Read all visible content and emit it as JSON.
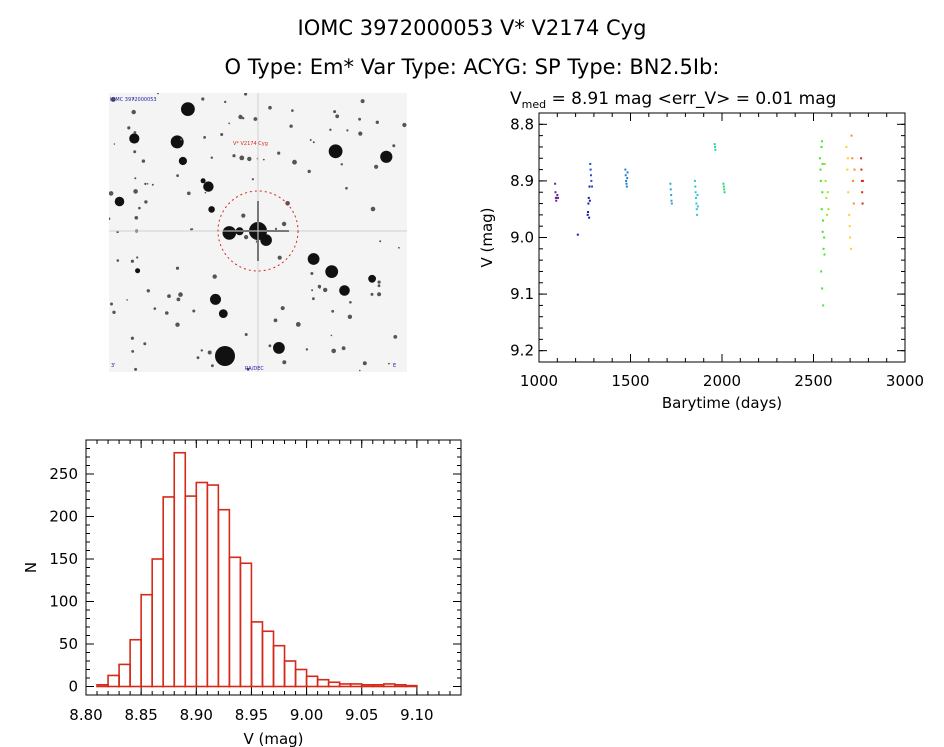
{
  "header": {
    "title_line1": "IOMC 3972000053    V* V2174 Cyg",
    "title_line2": "O Type: Em*  Var Type: ACYG:  SP Type: BN2.5Ib:"
  },
  "image_panel": {
    "label_top_left": "IOMC 3972000053",
    "label_target": "V* V2174 Cyg",
    "label_bottom_left": "3'",
    "label_bottom_center": "RA/DEC",
    "label_bottom_right": "E"
  },
  "chart_data": [
    {
      "type": "scatter",
      "title_prefix": "V",
      "title_subscript": "med",
      "title_rest": " = 8.91 mag <err_V> = 0.01 mag",
      "xlabel": "Barytime (days)",
      "ylabel": "V (mag)",
      "xlim": [
        1000,
        3000
      ],
      "ylim": [
        9.22,
        8.78
      ],
      "y_inverted": true,
      "x_ticks": [
        1000,
        1500,
        2000,
        2500,
        3000
      ],
      "y_ticks": [
        8.8,
        8.9,
        9.0,
        9.1,
        9.2
      ],
      "y_tick_labels": [
        "8.8",
        "8.9",
        "9.0",
        "9.1",
        "9.2"
      ],
      "series": [
        {
          "name": "group-1090",
          "color": "#6b1fa0",
          "x": [
            1088,
            1090,
            1092,
            1094,
            1096,
            1100,
            1104
          ],
          "y": [
            8.905,
            8.92,
            8.93,
            8.935,
            8.93,
            8.925,
            8.93
          ]
        },
        {
          "name": "group-1210",
          "color": "#1a1aa8",
          "x": [
            1212,
            1266,
            1268,
            1270,
            1272,
            1274,
            1276,
            1278
          ],
          "y": [
            8.995,
            8.96,
            8.955,
            8.94,
            8.93,
            8.965,
            8.91,
            8.935
          ]
        },
        {
          "name": "group-1285",
          "color": "#1f4fc0",
          "x": [
            1280,
            1282,
            1284,
            1286,
            1290
          ],
          "y": [
            8.87,
            8.88,
            8.89,
            8.9,
            8.91
          ]
        },
        {
          "name": "group-1480",
          "color": "#1f7fcf",
          "x": [
            1472,
            1474,
            1476,
            1478,
            1480,
            1482,
            1484
          ],
          "y": [
            8.88,
            8.89,
            8.9,
            8.905,
            8.91,
            8.895,
            8.885
          ]
        },
        {
          "name": "group-1720",
          "color": "#2aa7d6",
          "x": [
            1718,
            1720,
            1722,
            1724,
            1726
          ],
          "y": [
            8.905,
            8.915,
            8.925,
            8.935,
            8.94
          ]
        },
        {
          "name": "group-1860",
          "color": "#2cc3dc",
          "x": [
            1852,
            1854,
            1856,
            1858,
            1860,
            1862,
            1864,
            1866,
            1868
          ],
          "y": [
            8.9,
            8.91,
            8.92,
            8.93,
            8.94,
            8.95,
            8.96,
            8.925,
            8.945
          ]
        },
        {
          "name": "group-1960",
          "color": "#28d3b0",
          "x": [
            1960,
            1962,
            1964
          ],
          "y": [
            8.835,
            8.84,
            8.845
          ]
        },
        {
          "name": "group-2010",
          "color": "#2ed77a",
          "x": [
            2008,
            2010,
            2012,
            2014
          ],
          "y": [
            8.905,
            8.91,
            8.915,
            8.92
          ]
        },
        {
          "name": "group-2540",
          "color": "#3ee62a",
          "x": [
            2535,
            2540,
            2545,
            2550,
            2555,
            2560,
            2538,
            2548,
            2552,
            2558,
            2542,
            2547,
            2553,
            2544,
            2546,
            2550
          ],
          "y": [
            8.86,
            8.9,
            8.95,
            8.99,
            9.02,
            9.03,
            8.88,
            8.92,
            8.97,
            9.0,
            9.06,
            9.09,
            9.12,
            8.84,
            8.83,
            8.87
          ]
        },
        {
          "name": "group-2570",
          "color": "#a6e61f",
          "x": [
            2562,
            2566,
            2570,
            2574,
            2578,
            2582
          ],
          "y": [
            8.87,
            8.9,
            8.93,
            8.96,
            8.92,
            8.95
          ]
        },
        {
          "name": "group-2690",
          "color": "#ffd21a",
          "x": [
            2680,
            2685,
            2690,
            2695,
            2700,
            2705,
            2688,
            2698
          ],
          "y": [
            8.84,
            8.88,
            8.92,
            8.96,
            9.0,
            9.02,
            8.86,
            8.98
          ]
        },
        {
          "name": "group-2720",
          "color": "#ff8a1a",
          "x": [
            2708,
            2712,
            2716,
            2720,
            2724
          ],
          "y": [
            8.82,
            8.86,
            8.9,
            8.94,
            8.88
          ]
        },
        {
          "name": "group-2770",
          "color": "#d42a1a",
          "x": [
            2760,
            2762,
            2764,
            2766,
            2768,
            2770
          ],
          "y": [
            8.86,
            8.88,
            8.9,
            8.92,
            8.94,
            8.9
          ]
        }
      ]
    },
    {
      "type": "bar",
      "style": "histogram",
      "xlabel": "V (mag)",
      "ylabel": "N",
      "xlim": [
        8.8,
        9.14
      ],
      "ylim": [
        -10,
        290
      ],
      "x_ticks": [
        8.8,
        8.85,
        8.9,
        8.95,
        9.0,
        9.05,
        9.1
      ],
      "x_tick_labels": [
        "8.80",
        "8.85",
        "8.90",
        "8.95",
        "9.00",
        "9.05",
        "9.10"
      ],
      "y_ticks": [
        0,
        50,
        100,
        150,
        200,
        250
      ],
      "bin_start": 8.81,
      "bin_width": 0.01,
      "values": [
        2,
        13,
        26,
        55,
        108,
        150,
        223,
        275,
        224,
        240,
        237,
        208,
        152,
        145,
        76,
        65,
        48,
        30,
        20,
        12,
        8,
        5,
        3,
        3,
        2,
        2,
        3,
        2,
        1,
        0,
        0
      ],
      "color": "#d42a1a"
    }
  ]
}
